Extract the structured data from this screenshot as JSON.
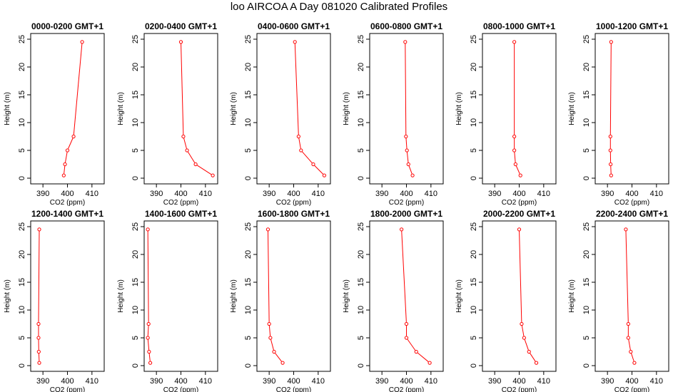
{
  "page": {
    "title": "loo AIRCOA A  Day 081020  Calibrated Profiles"
  },
  "chart_data": [
    {
      "type": "line",
      "title": "0000-0200 GMT+1",
      "xlabel": "CO2 (ppm)",
      "ylabel": "Height (m)",
      "xlim": [
        385,
        415
      ],
      "ylim": [
        0,
        25
      ],
      "xticks": [
        390,
        400,
        410
      ],
      "yticks": [
        0,
        5,
        10,
        15,
        20,
        25
      ],
      "color": "#ff0000",
      "x": [
        398.5,
        399.0,
        400.0,
        402.5,
        406.0
      ],
      "y": [
        0.5,
        2.5,
        5.0,
        7.5,
        24.5
      ]
    },
    {
      "type": "line",
      "title": "0200-0400 GMT+1",
      "xlabel": "CO2 (ppm)",
      "ylabel": "Height (m)",
      "xlim": [
        385,
        415
      ],
      "ylim": [
        0,
        25
      ],
      "xticks": [
        390,
        400,
        410
      ],
      "yticks": [
        0,
        5,
        10,
        15,
        20,
        25
      ],
      "color": "#ff0000",
      "x": [
        413.0,
        406.0,
        402.5,
        401.0,
        400.0
      ],
      "y": [
        0.5,
        2.5,
        5.0,
        7.5,
        24.5
      ]
    },
    {
      "type": "line",
      "title": "0400-0600 GMT+1",
      "xlabel": "CO2 (ppm)",
      "ylabel": "Height (m)",
      "xlim": [
        385,
        415
      ],
      "ylim": [
        0,
        25
      ],
      "xticks": [
        390,
        400,
        410
      ],
      "yticks": [
        0,
        5,
        10,
        15,
        20,
        25
      ],
      "color": "#ff0000",
      "x": [
        412.5,
        408.0,
        403.0,
        402.0,
        400.5
      ],
      "y": [
        0.5,
        2.5,
        5.0,
        7.5,
        24.5
      ]
    },
    {
      "type": "line",
      "title": "0600-0800 GMT+1",
      "xlabel": "CO2 (ppm)",
      "ylabel": "Height (m)",
      "xlim": [
        385,
        415
      ],
      "ylim": [
        0,
        25
      ],
      "xticks": [
        390,
        400,
        410
      ],
      "yticks": [
        0,
        5,
        10,
        15,
        20,
        25
      ],
      "color": "#ff0000",
      "x": [
        402.5,
        400.8,
        400.2,
        399.8,
        399.5
      ],
      "y": [
        0.5,
        2.5,
        5.0,
        7.5,
        24.5
      ]
    },
    {
      "type": "line",
      "title": "0800-1000 GMT+1",
      "xlabel": "CO2 (ppm)",
      "ylabel": "Height (m)",
      "xlim": [
        385,
        415
      ],
      "ylim": [
        0,
        25
      ],
      "xticks": [
        390,
        400,
        410
      ],
      "yticks": [
        0,
        5,
        10,
        15,
        20,
        25
      ],
      "color": "#ff0000",
      "x": [
        400.5,
        398.5,
        398.0,
        398.0,
        398.0
      ],
      "y": [
        0.5,
        2.5,
        5.0,
        7.5,
        24.5
      ]
    },
    {
      "type": "line",
      "title": "1000-1200 GMT+1",
      "xlabel": "CO2 (ppm)",
      "ylabel": "Height (m)",
      "xlim": [
        385,
        415
      ],
      "ylim": [
        0,
        25
      ],
      "xticks": [
        390,
        400,
        410
      ],
      "yticks": [
        0,
        5,
        10,
        15,
        20,
        25
      ],
      "color": "#ff0000",
      "x": [
        391.5,
        391.3,
        391.2,
        391.2,
        391.5
      ],
      "y": [
        0.5,
        2.5,
        5.0,
        7.5,
        24.5
      ]
    },
    {
      "type": "line",
      "title": "1200-1400 GMT+1",
      "xlabel": "CO2 (ppm)",
      "ylabel": "Height (m)",
      "xlim": [
        385,
        415
      ],
      "ylim": [
        0,
        25
      ],
      "xticks": [
        390,
        400,
        410
      ],
      "yticks": [
        0,
        5,
        10,
        15,
        20,
        25
      ],
      "color": "#ff0000",
      "x": [
        388.5,
        388.3,
        388.2,
        388.2,
        388.5
      ],
      "y": [
        0.5,
        2.5,
        5.0,
        7.5,
        24.5
      ]
    },
    {
      "type": "line",
      "title": "1400-1600 GMT+1",
      "xlabel": "CO2 (ppm)",
      "ylabel": "Height (m)",
      "xlim": [
        385,
        415
      ],
      "ylim": [
        0,
        25
      ],
      "xticks": [
        390,
        400,
        410
      ],
      "yticks": [
        0,
        5,
        10,
        15,
        20,
        25
      ],
      "color": "#ff0000",
      "x": [
        387.5,
        387.0,
        386.5,
        386.8,
        386.5
      ],
      "y": [
        0.5,
        2.5,
        5.0,
        7.5,
        24.5
      ]
    },
    {
      "type": "line",
      "title": "1600-1800 GMT+1",
      "xlabel": "CO2 (ppm)",
      "ylabel": "Height (m)",
      "xlim": [
        385,
        415
      ],
      "ylim": [
        0,
        25
      ],
      "xticks": [
        390,
        400,
        410
      ],
      "yticks": [
        0,
        5,
        10,
        15,
        20,
        25
      ],
      "color": "#ff0000",
      "x": [
        395.5,
        392.0,
        390.5,
        390.0,
        389.5
      ],
      "y": [
        0.5,
        2.5,
        5.0,
        7.5,
        24.5
      ]
    },
    {
      "type": "line",
      "title": "1800-2000 GMT+1",
      "xlabel": "CO2 (ppm)",
      "ylabel": "Height (m)",
      "xlim": [
        385,
        415
      ],
      "ylim": [
        0,
        25
      ],
      "xticks": [
        390,
        400,
        410
      ],
      "yticks": [
        0,
        5,
        10,
        15,
        20,
        25
      ],
      "color": "#ff0000",
      "x": [
        409.5,
        404.0,
        400.0,
        400.0,
        398.0
      ],
      "y": [
        0.5,
        2.5,
        5.0,
        7.5,
        24.5
      ]
    },
    {
      "type": "line",
      "title": "2000-2200 GMT+1",
      "xlabel": "CO2 (ppm)",
      "ylabel": "Height (m)",
      "xlim": [
        385,
        415
      ],
      "ylim": [
        0,
        25
      ],
      "xticks": [
        390,
        400,
        410
      ],
      "yticks": [
        0,
        5,
        10,
        15,
        20,
        25
      ],
      "color": "#ff0000",
      "x": [
        407.0,
        404.0,
        402.0,
        401.0,
        400.0
      ],
      "y": [
        0.5,
        2.5,
        5.0,
        7.5,
        24.5
      ]
    },
    {
      "type": "line",
      "title": "2200-2400 GMT+1",
      "xlabel": "CO2 (ppm)",
      "ylabel": "Height (m)",
      "xlim": [
        385,
        415
      ],
      "ylim": [
        0,
        25
      ],
      "xticks": [
        390,
        400,
        410
      ],
      "yticks": [
        0,
        5,
        10,
        15,
        20,
        25
      ],
      "color": "#ff0000",
      "x": [
        401.0,
        399.5,
        398.5,
        398.5,
        397.5
      ],
      "y": [
        0.5,
        2.5,
        5.0,
        7.5,
        24.5
      ]
    }
  ]
}
